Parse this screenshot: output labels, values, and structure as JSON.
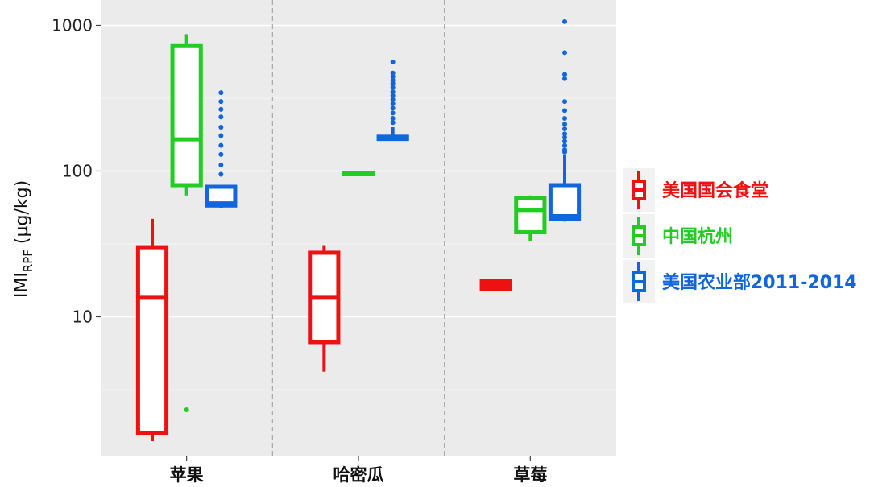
{
  "chart_data": {
    "type": "boxplot",
    "y_scale": "log10",
    "ylim": [
      1.1,
      1400
    ],
    "y_ticks": [
      10,
      100,
      1000
    ],
    "y_tick_labels": [
      "10",
      "100",
      "1000"
    ],
    "y_label_main": "IMI",
    "y_label_sub": "RPF",
    "y_label_unit": " (µg/kg)",
    "grid": true,
    "legend_position": "right",
    "categories": [
      "苹果",
      "哈密瓜",
      "草莓"
    ],
    "series": [
      {
        "name": "美国国会食堂",
        "color": "#ee1111",
        "boxes": [
          {
            "category": "苹果",
            "whisker_low": 1.4,
            "q1": 1.6,
            "median": 13.5,
            "q3": 30,
            "whisker_high": 47,
            "outliers": []
          },
          {
            "category": "哈密瓜",
            "whisker_low": 4.2,
            "q1": 6.7,
            "median": 13.5,
            "q3": 27.5,
            "whisker_high": 31,
            "outliers": []
          },
          {
            "category": "草莓",
            "whisker_low": 15.5,
            "q1": 15.5,
            "median": 16.5,
            "q3": 17.5,
            "whisker_high": 17.5,
            "outliers": []
          }
        ]
      },
      {
        "name": "中国杭州",
        "color": "#22cc22",
        "boxes": [
          {
            "category": "苹果",
            "whisker_low": 68,
            "q1": 80,
            "median": 165,
            "q3": 720,
            "whisker_high": 870,
            "outliers": [
              2.3
            ]
          },
          {
            "category": "哈密瓜",
            "whisker_low": 95,
            "q1": 95,
            "median": 96,
            "q3": 97,
            "whisker_high": 97,
            "outliers": []
          },
          {
            "category": "草莓",
            "whisker_low": 33,
            "q1": 38,
            "median": 54,
            "q3": 65,
            "whisker_high": 68,
            "outliers": []
          }
        ]
      },
      {
        "name": "美国农业部2011-2014",
        "color": "#1166dd",
        "boxes": [
          {
            "category": "苹果",
            "whisker_low": 56,
            "q1": 58,
            "median": 60,
            "q3": 78,
            "whisker_high": 80,
            "outliers": [
              95,
              110,
              130,
              150,
              175,
              200,
              235,
              265,
              300,
              345
            ]
          },
          {
            "category": "哈密瓜",
            "whisker_low": 165,
            "q1": 166,
            "median": 168,
            "q3": 172,
            "whisker_high": 200,
            "outliers": [
              215,
              230,
              250,
              270,
              290,
              310,
              330,
              350,
              375,
              400,
              420,
              445,
              470,
              560
            ]
          },
          {
            "category": "草莓",
            "whisker_low": 45,
            "q1": 47,
            "median": 49,
            "q3": 80,
            "whisker_high": 130,
            "outliers": [
              135,
              140,
              150,
              160,
              170,
              180,
              195,
              210,
              230,
              260,
              300,
              430,
              460,
              650,
              1060
            ]
          }
        ]
      }
    ]
  }
}
